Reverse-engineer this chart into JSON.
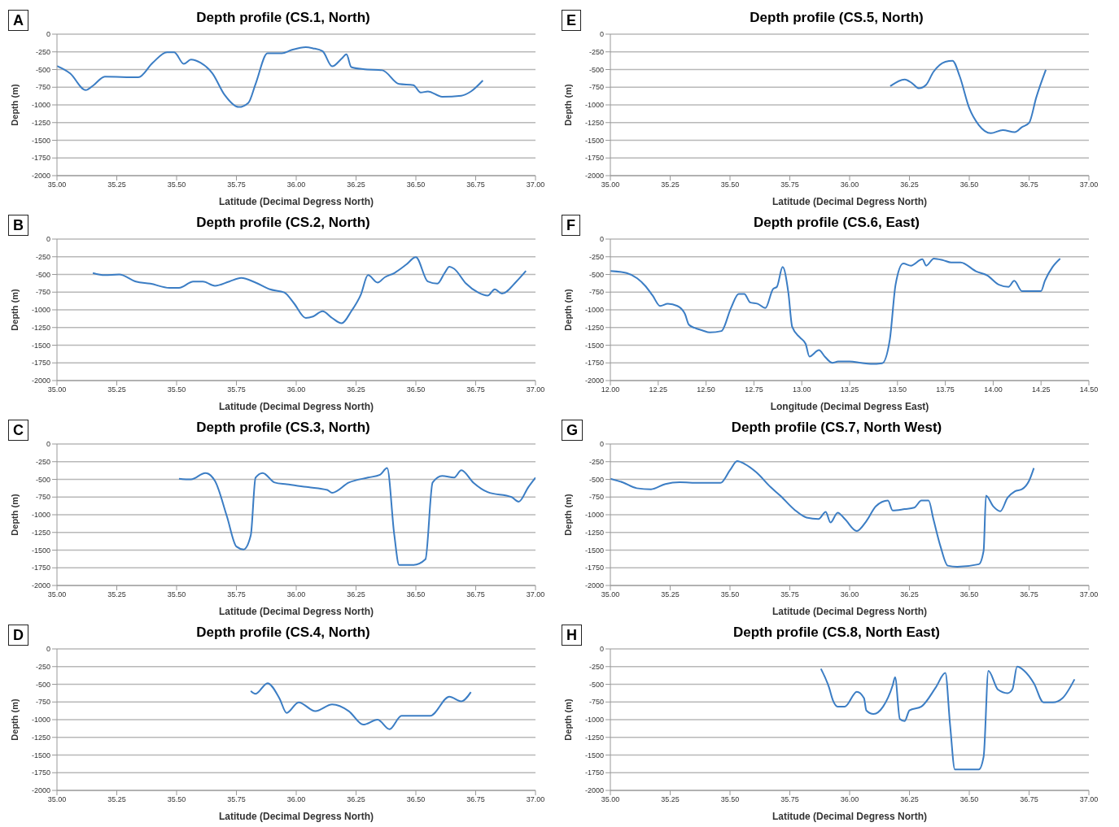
{
  "chart_data": [
    {
      "type": "line",
      "title": "Depth profile (CS.1, North)",
      "xlabel": "Latitude (Decimal Degress North)",
      "ylabel": "Depth (m)",
      "annotations": [
        "A"
      ],
      "color": "#3b7dc4",
      "grid": "y",
      "xlim": [
        35,
        37
      ],
      "xticks": [
        {
          "value": 35,
          "label": "35.00"
        },
        {
          "value": 35.25,
          "label": "35.25"
        },
        {
          "value": 35.5,
          "label": "35.50"
        },
        {
          "value": 35.75,
          "label": "35.75"
        },
        {
          "value": 36,
          "label": "36.00"
        },
        {
          "value": 36.25,
          "label": "36.25"
        },
        {
          "value": 36.5,
          "label": "36.50"
        },
        {
          "value": 36.75,
          "label": "36.75"
        },
        {
          "value": 37,
          "label": "37.00"
        }
      ],
      "ylim": [
        -2000,
        0
      ],
      "yticks": [
        0,
        -250,
        -500,
        -750,
        -1000,
        -1250,
        -1500,
        -1750,
        -2000
      ],
      "x": [
        35.0,
        35.055,
        35.12,
        35.15,
        35.2,
        35.34,
        35.4,
        35.46,
        35.49,
        35.53,
        35.56,
        35.6,
        35.65,
        35.7,
        35.76,
        35.8,
        35.83,
        35.88,
        35.94,
        35.98,
        36.04,
        36.07,
        36.11,
        36.15,
        36.19,
        36.21,
        36.23,
        36.28,
        36.36,
        36.43,
        36.49,
        36.52,
        36.55,
        36.61,
        36.69,
        36.73,
        36.78
      ],
      "values": [
        -450,
        -555,
        -790,
        -730,
        -600,
        -610,
        -405,
        -255,
        -255,
        -420,
        -360,
        -405,
        -555,
        -855,
        -1030,
        -970,
        -705,
        -270,
        -270,
        -225,
        -185,
        -200,
        -240,
        -455,
        -345,
        -285,
        -465,
        -495,
        -510,
        -705,
        -720,
        -825,
        -810,
        -885,
        -870,
        -810,
        -655
      ]
    },
    {
      "type": "line",
      "title": "Depth profile (CS.5, North)",
      "xlabel": "Latitude (Decimal Degress North)",
      "ylabel": "Depth (m)",
      "annotations": [
        "E"
      ],
      "color": "#3b7dc4",
      "grid": "y",
      "xlim": [
        35,
        37
      ],
      "xticks": [
        {
          "value": 35,
          "label": "35.00"
        },
        {
          "value": 35.25,
          "label": "35.25"
        },
        {
          "value": 35.5,
          "label": "35.50"
        },
        {
          "value": 35.75,
          "label": "35.75"
        },
        {
          "value": 36,
          "label": "36.00"
        },
        {
          "value": 36.25,
          "label": "36.25"
        },
        {
          "value": 36.5,
          "label": "36.50"
        },
        {
          "value": 36.75,
          "label": "36.75"
        },
        {
          "value": 37,
          "label": "37.00"
        }
      ],
      "ylim": [
        -2000,
        0
      ],
      "yticks": [
        0,
        -250,
        -500,
        -750,
        -1000,
        -1250,
        -1500,
        -1750,
        -2000
      ],
      "x": [
        36.17,
        36.23,
        36.26,
        36.29,
        36.32,
        36.35,
        36.4,
        36.43,
        36.46,
        36.5,
        36.54,
        36.59,
        36.64,
        36.69,
        36.72,
        36.75,
        36.78,
        36.82
      ],
      "values": [
        -735,
        -640,
        -690,
        -765,
        -715,
        -535,
        -390,
        -375,
        -595,
        -1045,
        -1285,
        -1400,
        -1355,
        -1385,
        -1315,
        -1255,
        -895,
        -505
      ]
    },
    {
      "type": "line",
      "title": "Depth profile (CS.2, North)",
      "xlabel": "Latitude (Decimal Degress North)",
      "ylabel": "Depth (m)",
      "annotations": [
        "B"
      ],
      "color": "#3b7dc4",
      "grid": "y",
      "xlim": [
        35,
        37
      ],
      "xticks": [
        {
          "value": 35,
          "label": "35.00"
        },
        {
          "value": 35.25,
          "label": "35.25"
        },
        {
          "value": 35.5,
          "label": "35.50"
        },
        {
          "value": 35.75,
          "label": "35.75"
        },
        {
          "value": 36,
          "label": "36.00"
        },
        {
          "value": 36.25,
          "label": "36.25"
        },
        {
          "value": 36.5,
          "label": "36.50"
        },
        {
          "value": 36.75,
          "label": "36.75"
        },
        {
          "value": 37,
          "label": "37.00"
        }
      ],
      "ylim": [
        -2000,
        0
      ],
      "yticks": [
        0,
        -250,
        -500,
        -750,
        -1000,
        -1250,
        -1500,
        -1750,
        -2000
      ],
      "x": [
        35.15,
        35.2,
        35.26,
        35.33,
        35.39,
        35.47,
        35.51,
        35.57,
        35.61,
        35.66,
        35.72,
        35.77,
        35.83,
        35.89,
        35.95,
        35.99,
        36.04,
        36.07,
        36.11,
        36.15,
        36.19,
        36.23,
        36.27,
        36.3,
        36.34,
        36.37,
        36.41,
        36.46,
        36.5,
        36.55,
        36.59,
        36.62,
        36.64,
        36.66,
        36.71,
        36.76,
        36.8,
        36.83,
        36.86,
        36.92,
        36.96
      ],
      "values": [
        -480,
        -510,
        -500,
        -600,
        -630,
        -690,
        -690,
        -600,
        -600,
        -660,
        -600,
        -550,
        -615,
        -710,
        -755,
        -905,
        -1115,
        -1095,
        -1020,
        -1115,
        -1190,
        -1020,
        -785,
        -510,
        -615,
        -540,
        -480,
        -360,
        -255,
        -600,
        -630,
        -480,
        -390,
        -420,
        -630,
        -755,
        -800,
        -710,
        -770,
        -600,
        -450
      ]
    },
    {
      "type": "line",
      "title": "Depth profile (CS.6, East)",
      "xlabel": "Longitude (Decimal Degress East)",
      "ylabel": "Depth (m)",
      "annotations": [
        "F"
      ],
      "color": "#3b7dc4",
      "grid": "y",
      "xlim": [
        12,
        14.5
      ],
      "xticks": [
        {
          "value": 12,
          "label": "12.00"
        },
        {
          "value": 12.25,
          "label": "12.25"
        },
        {
          "value": 12.5,
          "label": "12.50"
        },
        {
          "value": 12.75,
          "label": "12.75"
        },
        {
          "value": 13,
          "label": "13.00"
        },
        {
          "value": 13.25,
          "label": "13.25"
        },
        {
          "value": 13.5,
          "label": "13.50"
        },
        {
          "value": 13.75,
          "label": "13.75"
        },
        {
          "value": 14,
          "label": "14.00"
        },
        {
          "value": 14.25,
          "label": "14.25"
        },
        {
          "value": 14.5,
          "label": "14.50"
        }
      ],
      "ylim": [
        -2000,
        0
      ],
      "yticks": [
        0,
        -250,
        -500,
        -750,
        -1000,
        -1250,
        -1500,
        -1750,
        -2000
      ],
      "x": [
        12.0,
        12.085,
        12.14,
        12.18,
        12.22,
        12.26,
        12.3,
        12.35,
        12.39,
        12.41,
        12.44,
        12.48,
        12.52,
        12.58,
        12.63,
        12.67,
        12.7,
        12.73,
        12.77,
        12.81,
        12.85,
        12.87,
        12.9,
        12.93,
        12.95,
        12.99,
        13.02,
        13.04,
        13.09,
        13.12,
        13.16,
        13.19,
        13.25,
        13.31,
        13.36,
        13.42,
        13.46,
        13.49,
        13.53,
        13.57,
        13.63,
        13.65,
        13.69,
        13.74,
        13.78,
        13.83,
        13.91,
        13.97,
        14.03,
        14.08,
        14.11,
        14.15,
        14.21,
        14.25,
        14.27,
        14.31,
        14.35
      ],
      "values": [
        -450,
        -480,
        -555,
        -655,
        -795,
        -945,
        -915,
        -945,
        -1060,
        -1210,
        -1255,
        -1290,
        -1320,
        -1300,
        -975,
        -775,
        -775,
        -895,
        -915,
        -975,
        -705,
        -675,
        -395,
        -760,
        -1240,
        -1390,
        -1480,
        -1660,
        -1570,
        -1660,
        -1750,
        -1730,
        -1730,
        -1750,
        -1765,
        -1755,
        -1420,
        -645,
        -345,
        -375,
        -285,
        -375,
        -275,
        -300,
        -330,
        -330,
        -455,
        -515,
        -645,
        -675,
        -590,
        -735,
        -735,
        -735,
        -590,
        -395,
        -275
      ]
    },
    {
      "type": "line",
      "title": "Depth profile (CS.3, North)",
      "xlabel": "Latitude (Decimal Degress North)",
      "ylabel": "Depth (m)",
      "annotations": [
        "C"
      ],
      "color": "#3b7dc4",
      "grid": "y",
      "xlim": [
        35,
        37
      ],
      "xticks": [
        {
          "value": 35,
          "label": "35.00"
        },
        {
          "value": 35.25,
          "label": "35.25"
        },
        {
          "value": 35.5,
          "label": "35.50"
        },
        {
          "value": 35.75,
          "label": "35.75"
        },
        {
          "value": 36,
          "label": "36.00"
        },
        {
          "value": 36.25,
          "label": "36.25"
        },
        {
          "value": 36.5,
          "label": "36.50"
        },
        {
          "value": 36.75,
          "label": "36.75"
        },
        {
          "value": 37,
          "label": "37.00"
        }
      ],
      "ylim": [
        -2000,
        0
      ],
      "yticks": [
        0,
        -250,
        -500,
        -750,
        -1000,
        -1250,
        -1500,
        -1750,
        -2000
      ],
      "x": [
        35.51,
        35.56,
        35.62,
        35.66,
        35.71,
        35.75,
        35.78,
        35.81,
        35.83,
        35.86,
        35.91,
        35.96,
        36.05,
        36.13,
        36.15,
        36.22,
        36.3,
        36.35,
        36.38,
        36.41,
        36.43,
        36.49,
        36.54,
        36.57,
        36.61,
        36.66,
        36.69,
        36.74,
        36.8,
        36.9,
        36.93,
        36.97,
        37.0
      ],
      "values": [
        -490,
        -500,
        -410,
        -520,
        -1020,
        -1450,
        -1490,
        -1290,
        -475,
        -410,
        -545,
        -570,
        -610,
        -650,
        -690,
        -545,
        -475,
        -435,
        -340,
        -1290,
        -1710,
        -1710,
        -1630,
        -545,
        -450,
        -475,
        -370,
        -545,
        -680,
        -750,
        -815,
        -610,
        -475
      ]
    },
    {
      "type": "line",
      "title": "Depth profile (CS.7, North West)",
      "xlabel": "Latitude (Decimal Degress North)",
      "ylabel": "Depth (m)",
      "annotations": [
        "G"
      ],
      "color": "#3b7dc4",
      "grid": "y",
      "xlim": [
        35,
        37
      ],
      "xticks": [
        {
          "value": 35,
          "label": "35.00"
        },
        {
          "value": 35.25,
          "label": "35.25"
        },
        {
          "value": 35.5,
          "label": "35.50"
        },
        {
          "value": 35.75,
          "label": "35.75"
        },
        {
          "value": 36,
          "label": "36.00"
        },
        {
          "value": 36.25,
          "label": "36.25"
        },
        {
          "value": 36.5,
          "label": "36.50"
        },
        {
          "value": 36.75,
          "label": "36.75"
        },
        {
          "value": 37,
          "label": "37.00"
        }
      ],
      "ylim": [
        -2000,
        0
      ],
      "yticks": [
        0,
        -250,
        -500,
        -750,
        -1000,
        -1250,
        -1500,
        -1750,
        -2000
      ],
      "x": [
        35.0,
        35.05,
        35.11,
        35.17,
        35.23,
        35.29,
        35.37,
        35.46,
        35.5,
        35.53,
        35.56,
        35.61,
        35.67,
        35.71,
        35.77,
        35.82,
        35.87,
        35.9,
        35.92,
        35.95,
        35.98,
        36.03,
        36.07,
        36.11,
        36.16,
        36.18,
        36.23,
        36.27,
        36.3,
        36.33,
        36.35,
        36.38,
        36.41,
        36.45,
        36.54,
        36.56,
        36.57,
        36.6,
        36.63,
        36.66,
        36.69,
        36.72,
        36.75,
        36.77
      ],
      "values": [
        -490,
        -540,
        -625,
        -640,
        -565,
        -540,
        -550,
        -550,
        -370,
        -240,
        -280,
        -400,
        -610,
        -730,
        -930,
        -1040,
        -1060,
        -960,
        -1110,
        -970,
        -1060,
        -1230,
        -1090,
        -880,
        -800,
        -940,
        -920,
        -900,
        -800,
        -800,
        -1060,
        -1450,
        -1720,
        -1735,
        -1700,
        -1510,
        -730,
        -880,
        -950,
        -760,
        -670,
        -640,
        -520,
        -340
      ]
    },
    {
      "type": "line",
      "title": "Depth profile (CS.4, North)",
      "xlabel": "Latitude (Decimal Degress North)",
      "ylabel": "Depth (m)",
      "annotations": [
        "D"
      ],
      "color": "#3b7dc4",
      "grid": "y",
      "xlim": [
        35,
        37
      ],
      "xticks": [
        {
          "value": 35,
          "label": "35.00"
        },
        {
          "value": 35.25,
          "label": "35.25"
        },
        {
          "value": 35.5,
          "label": "35.50"
        },
        {
          "value": 35.75,
          "label": "35.75"
        },
        {
          "value": 36,
          "label": "36.00"
        },
        {
          "value": 36.25,
          "label": "36.25"
        },
        {
          "value": 36.5,
          "label": "36.50"
        },
        {
          "value": 36.75,
          "label": "36.75"
        },
        {
          "value": 37,
          "label": "37.00"
        }
      ],
      "ylim": [
        -2000,
        0
      ],
      "yticks": [
        0,
        -250,
        -500,
        -750,
        -1000,
        -1250,
        -1500,
        -1750,
        -2000
      ],
      "x": [
        35.81,
        35.83,
        35.88,
        35.93,
        35.96,
        36.01,
        36.08,
        36.15,
        36.22,
        36.28,
        36.34,
        36.39,
        36.44,
        36.51,
        36.56,
        36.64,
        36.69,
        36.73
      ],
      "values": [
        -595,
        -635,
        -485,
        -700,
        -905,
        -755,
        -880,
        -785,
        -880,
        -1070,
        -1000,
        -1135,
        -945,
        -945,
        -945,
        -675,
        -740,
        -610
      ]
    },
    {
      "type": "line",
      "title": "Depth profile (CS.8, North East)",
      "xlabel": "Latitude (Decimal Degress North)",
      "ylabel": "Depth (m)",
      "annotations": [
        "H"
      ],
      "color": "#3b7dc4",
      "grid": "y",
      "xlim": [
        35,
        37
      ],
      "xticks": [
        {
          "value": 35,
          "label": "35.00"
        },
        {
          "value": 35.25,
          "label": "35.25"
        },
        {
          "value": 35.5,
          "label": "35.50"
        },
        {
          "value": 35.75,
          "label": "35.75"
        },
        {
          "value": 36,
          "label": "36.00"
        },
        {
          "value": 36.25,
          "label": "36.25"
        },
        {
          "value": 36.5,
          "label": "36.50"
        },
        {
          "value": 36.75,
          "label": "36.75"
        },
        {
          "value": 37,
          "label": "37.00"
        }
      ],
      "ylim": [
        -2000,
        0
      ],
      "yticks": [
        0,
        -250,
        -500,
        -750,
        -1000,
        -1250,
        -1500,
        -1750,
        -2000
      ],
      "x": [
        35.88,
        35.914,
        35.93,
        35.95,
        35.98,
        36.03,
        36.06,
        36.07,
        36.1,
        36.14,
        36.18,
        36.19,
        36.21,
        36.23,
        36.25,
        36.3,
        36.36,
        36.4,
        36.42,
        36.44,
        36.48,
        36.54,
        36.56,
        36.58,
        36.62,
        36.66,
        36.68,
        36.7,
        36.73,
        36.77,
        36.81,
        36.85,
        36.89,
        36.94
      ],
      "values": [
        -280,
        -545,
        -725,
        -815,
        -815,
        -605,
        -695,
        -870,
        -920,
        -815,
        -515,
        -400,
        -990,
        -1020,
        -870,
        -815,
        -545,
        -340,
        -1080,
        -1705,
        -1705,
        -1705,
        -1525,
        -310,
        -575,
        -625,
        -575,
        -250,
        -310,
        -485,
        -755,
        -755,
        -695,
        -430
      ]
    }
  ]
}
